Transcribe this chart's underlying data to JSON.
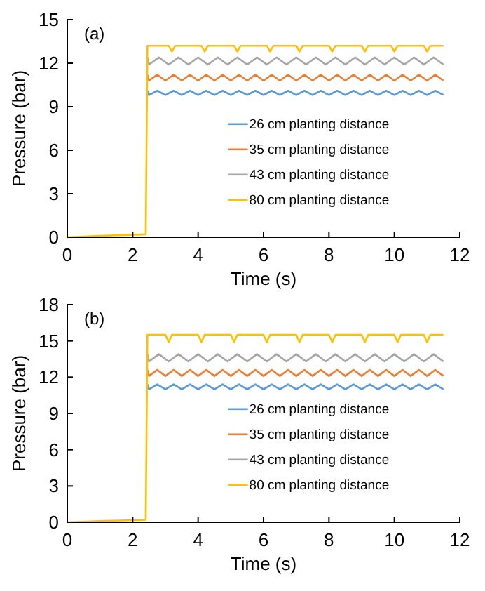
{
  "chart_data": [
    {
      "type": "line",
      "xlabel": "Time (s)",
      "ylabel": "Pressure (bar)",
      "annotations": [
        "(a)"
      ],
      "xlim": [
        0,
        12
      ],
      "xticks": [
        0,
        2,
        4,
        6,
        8,
        10,
        12
      ],
      "ylim": [
        0,
        15
      ],
      "yticks": [
        0,
        3,
        6,
        9,
        12,
        15
      ],
      "grid": false,
      "legend": "right",
      "marker": "none",
      "line_style": "solid",
      "series": [
        {
          "name": "26 cm planting distance",
          "color": "#5b9bd5",
          "x": [
            2.45,
            2.5,
            2.75,
            3,
            3.25,
            3.5,
            3.75,
            4,
            4.25,
            4.5,
            4.75,
            5,
            5.25,
            5.5,
            5.75,
            6,
            6.25,
            6.5,
            6.75,
            7,
            7.25,
            7.5,
            7.75,
            8,
            8.25,
            8.5,
            8.75,
            9,
            9.25,
            9.5,
            9.75,
            10,
            10.25,
            10.5,
            10.75,
            11,
            11.25,
            11.5
          ],
          "values": [
            10.1,
            9.8,
            10.1,
            9.8,
            10.1,
            9.8,
            10.1,
            9.8,
            10.1,
            9.8,
            10.1,
            9.8,
            10.1,
            9.8,
            10.1,
            9.8,
            10.1,
            9.8,
            10.1,
            9.8,
            10.1,
            9.8,
            10.1,
            9.8,
            10.1,
            9.8,
            10.1,
            9.8,
            10.1,
            9.8,
            10.1,
            9.8,
            10.1,
            9.8,
            10.1,
            9.8,
            10.1,
            9.8
          ]
        },
        {
          "name": "35 cm planting distance",
          "color": "#ed7d31",
          "x": [
            2.45,
            2.5,
            2.75,
            3,
            3.25,
            3.5,
            3.75,
            4,
            4.25,
            4.5,
            4.75,
            5,
            5.25,
            5.5,
            5.75,
            6,
            6.25,
            6.5,
            6.75,
            7,
            7.25,
            7.5,
            7.75,
            8,
            8.25,
            8.5,
            8.75,
            9,
            9.25,
            9.5,
            9.75,
            10,
            10.25,
            10.5,
            10.75,
            11,
            11.25,
            11.5
          ],
          "values": [
            11.2,
            10.8,
            11.2,
            10.8,
            11.2,
            10.8,
            11.2,
            10.8,
            11.2,
            10.8,
            11.2,
            10.8,
            11.2,
            10.8,
            11.2,
            10.8,
            11.2,
            10.8,
            11.2,
            10.8,
            11.2,
            10.8,
            11.2,
            10.8,
            11.2,
            10.8,
            11.2,
            10.8,
            11.2,
            10.8,
            11.2,
            10.8,
            11.2,
            10.8,
            11.2,
            10.8,
            11.2,
            10.8
          ]
        },
        {
          "name": "43 cm planting distance",
          "color": "#a5a5a5",
          "x": [
            2.45,
            2.5,
            2.8,
            3.1,
            3.4,
            3.7,
            4,
            4.3,
            4.6,
            4.9,
            5.2,
            5.5,
            5.8,
            6.1,
            6.4,
            6.7,
            7,
            7.3,
            7.6,
            7.9,
            8.2,
            8.5,
            8.8,
            9.1,
            9.4,
            9.7,
            10,
            10.3,
            10.6,
            10.9,
            11.2,
            11.5
          ],
          "values": [
            12.4,
            11.9,
            12.4,
            11.9,
            12.4,
            11.9,
            12.4,
            11.9,
            12.4,
            11.9,
            12.4,
            11.9,
            12.4,
            11.9,
            12.4,
            11.9,
            12.4,
            11.9,
            12.4,
            11.9,
            12.4,
            11.9,
            12.4,
            11.9,
            12.4,
            11.9,
            12.4,
            11.9,
            12.4,
            11.9,
            12.4,
            11.9
          ]
        },
        {
          "name": "80 cm planting distance",
          "color": "#ffc000",
          "x": [
            0,
            1,
            2.4,
            2.45,
            3.1,
            3.2,
            3.3,
            4.1,
            4.2,
            4.3,
            5.1,
            5.2,
            5.3,
            6.1,
            6.2,
            6.3,
            7,
            7.1,
            7.2,
            8,
            8.1,
            8.2,
            9,
            9.1,
            9.2,
            9.9,
            10,
            10.1,
            10.9,
            11,
            11.1,
            11.5
          ],
          "values": [
            0,
            0.1,
            0.2,
            13.2,
            13.2,
            12.8,
            13.2,
            13.2,
            12.8,
            13.2,
            13.2,
            12.8,
            13.2,
            13.2,
            12.8,
            13.2,
            13.2,
            12.8,
            13.2,
            13.2,
            12.8,
            13.2,
            13.2,
            12.8,
            13.2,
            13.2,
            12.8,
            13.2,
            13.2,
            12.8,
            13.2,
            13.2
          ]
        }
      ]
    },
    {
      "type": "line",
      "xlabel": "Time (s)",
      "ylabel": "Pressure (bar)",
      "annotations": [
        "(b)"
      ],
      "xlim": [
        0,
        12
      ],
      "xticks": [
        0,
        2,
        4,
        6,
        8,
        10,
        12
      ],
      "ylim": [
        0,
        18
      ],
      "yticks": [
        0,
        3,
        6,
        9,
        12,
        15,
        18
      ],
      "grid": false,
      "legend": "right",
      "marker": "none",
      "line_style": "solid",
      "series": [
        {
          "name": "26 cm planting distance",
          "color": "#5b9bd5",
          "x": [
            2.45,
            2.5,
            2.75,
            3,
            3.25,
            3.5,
            3.75,
            4,
            4.25,
            4.5,
            4.75,
            5,
            5.25,
            5.5,
            5.75,
            6,
            6.25,
            6.5,
            6.75,
            7,
            7.25,
            7.5,
            7.75,
            8,
            8.25,
            8.5,
            8.75,
            9,
            9.25,
            9.5,
            9.75,
            10,
            10.25,
            10.5,
            10.75,
            11,
            11.25,
            11.5
          ],
          "values": [
            11.4,
            11,
            11.4,
            11,
            11.4,
            11,
            11.4,
            11,
            11.4,
            11,
            11.4,
            11,
            11.4,
            11,
            11.4,
            11,
            11.4,
            11,
            11.4,
            11,
            11.4,
            11,
            11.4,
            11,
            11.4,
            11,
            11.4,
            11,
            11.4,
            11,
            11.4,
            11,
            11.4,
            11,
            11.4,
            11,
            11.4,
            11
          ]
        },
        {
          "name": "35 cm planting distance",
          "color": "#ed7d31",
          "x": [
            2.45,
            2.5,
            2.75,
            3,
            3.25,
            3.5,
            3.75,
            4,
            4.25,
            4.5,
            4.75,
            5,
            5.25,
            5.5,
            5.75,
            6,
            6.25,
            6.5,
            6.75,
            7,
            7.25,
            7.5,
            7.75,
            8,
            8.25,
            8.5,
            8.75,
            9,
            9.25,
            9.5,
            9.75,
            10,
            10.25,
            10.5,
            10.75,
            11,
            11.25,
            11.5
          ],
          "values": [
            12.6,
            12.1,
            12.6,
            12.1,
            12.6,
            12.1,
            12.6,
            12.1,
            12.6,
            12.1,
            12.6,
            12.1,
            12.6,
            12.1,
            12.6,
            12.1,
            12.6,
            12.1,
            12.6,
            12.1,
            12.6,
            12.1,
            12.6,
            12.1,
            12.6,
            12.1,
            12.6,
            12.1,
            12.6,
            12.1,
            12.6,
            12.1,
            12.6,
            12.1,
            12.6,
            12.1,
            12.6,
            12.1
          ]
        },
        {
          "name": "43 cm planting distance",
          "color": "#a5a5a5",
          "x": [
            2.45,
            2.5,
            2.8,
            3.1,
            3.4,
            3.7,
            4,
            4.3,
            4.6,
            4.9,
            5.2,
            5.5,
            5.8,
            6.1,
            6.4,
            6.7,
            7,
            7.3,
            7.6,
            7.9,
            8.2,
            8.5,
            8.8,
            9.1,
            9.4,
            9.7,
            10,
            10.3,
            10.6,
            10.9,
            11.2,
            11.5
          ],
          "values": [
            13.9,
            13.3,
            13.9,
            13.3,
            13.9,
            13.3,
            13.9,
            13.3,
            13.9,
            13.3,
            13.9,
            13.3,
            13.9,
            13.3,
            13.9,
            13.3,
            13.9,
            13.3,
            13.9,
            13.3,
            13.9,
            13.3,
            13.9,
            13.3,
            13.9,
            13.3,
            13.9,
            13.3,
            13.9,
            13.3,
            13.9,
            13.3
          ]
        },
        {
          "name": "80 cm planting distance",
          "color": "#ffc000",
          "x": [
            0,
            1,
            2.4,
            2.45,
            3,
            3.1,
            3.2,
            4,
            4.1,
            4.2,
            5,
            5.1,
            5.2,
            6,
            6.1,
            6.2,
            7,
            7.1,
            7.2,
            8,
            8.1,
            8.2,
            9,
            9.1,
            9.2,
            10,
            10.1,
            10.2,
            10.9,
            11,
            11.1,
            11.5
          ],
          "values": [
            0,
            0.1,
            0.2,
            15.5,
            15.5,
            14.9,
            15.5,
            15.5,
            14.9,
            15.5,
            15.5,
            14.9,
            15.5,
            15.5,
            14.9,
            15.5,
            15.5,
            14.9,
            15.5,
            15.5,
            14.9,
            15.5,
            15.5,
            14.9,
            15.5,
            15.5,
            14.9,
            15.5,
            15.5,
            14.9,
            15.5,
            15.5
          ]
        }
      ]
    }
  ]
}
